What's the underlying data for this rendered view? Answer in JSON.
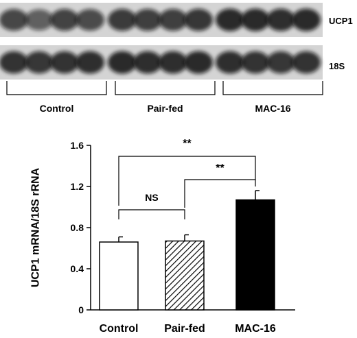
{
  "blot": {
    "bands": [
      {
        "label": "UCP1",
        "intensity": [
          0.72,
          0.6,
          0.74,
          0.7,
          0.78,
          0.76,
          0.76,
          0.8,
          0.86,
          0.86,
          0.84,
          0.86
        ]
      },
      {
        "label": "18S",
        "intensity": [
          0.82,
          0.8,
          0.82,
          0.84,
          0.86,
          0.84,
          0.84,
          0.86,
          0.84,
          0.82,
          0.8,
          0.82
        ]
      }
    ],
    "groups": [
      "Control",
      "Pair-fed",
      "MAC-16"
    ],
    "colors": {
      "band": "#111111",
      "background": "#d4d4d4"
    }
  },
  "chart_data": {
    "type": "bar",
    "categories": [
      "Control",
      "Pair-fed",
      "MAC-16"
    ],
    "values": [
      0.66,
      0.67,
      1.07
    ],
    "errors": [
      0.05,
      0.06,
      0.09
    ],
    "fills": [
      "white",
      "hatched",
      "black"
    ],
    "ylabel": "UCP1 mRNA/18S rRNA",
    "xlabel": "",
    "ylim": [
      0,
      1.6
    ],
    "yticks": [
      "0",
      "0.4",
      "0.8",
      "1.2",
      "1.6"
    ],
    "tick_values": [
      0,
      0.4,
      0.8,
      1.2,
      1.6
    ],
    "significance": [
      {
        "from": 0,
        "to": 1,
        "label": "NS"
      },
      {
        "from": 1,
        "to": 2,
        "label": "**"
      },
      {
        "from": 0,
        "to": 2,
        "label": "**"
      }
    ],
    "grid": false
  }
}
